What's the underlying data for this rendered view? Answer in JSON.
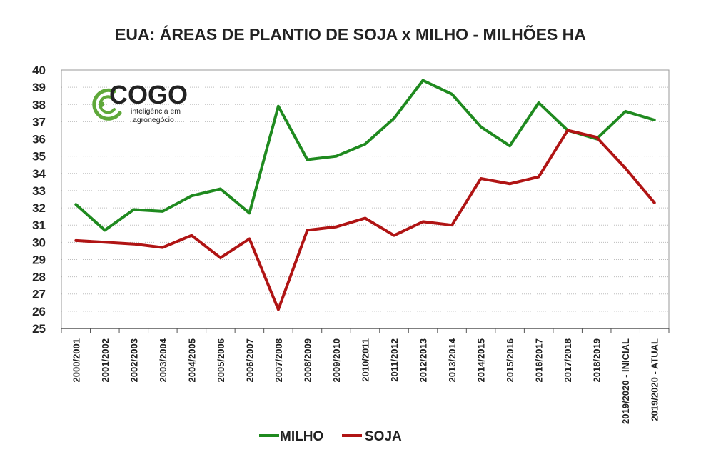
{
  "chart_data": {
    "type": "line",
    "title": "EUA: ÁREAS DE PLANTIO DE SOJA x MILHO - MILHÕES HA",
    "categories": [
      "2000/2001",
      "2001/2002",
      "2002/2003",
      "2003/2004",
      "2004/2005",
      "2005/2006",
      "2006/2007",
      "2007/2008",
      "2008/2009",
      "2009/2010",
      "2010/2011",
      "2011/2012",
      "2012/2013",
      "2013/2014",
      "2014/2015",
      "2015/2016",
      "2016/2017",
      "2017/2018",
      "2018/2019",
      "2019/2020 - INICIAL",
      "2019/2020 - ATUAL"
    ],
    "series": [
      {
        "name": "MILHO",
        "color": "#1f8a1f",
        "values": [
          32.2,
          30.7,
          31.9,
          31.8,
          32.7,
          33.1,
          31.7,
          37.9,
          34.8,
          35.0,
          35.7,
          37.2,
          39.4,
          38.6,
          36.7,
          35.6,
          38.1,
          36.5,
          36.0,
          37.6,
          37.1
        ]
      },
      {
        "name": "SOJA",
        "color": "#b01414",
        "values": [
          30.1,
          30.0,
          29.9,
          29.7,
          30.4,
          29.1,
          30.2,
          26.1,
          30.7,
          30.9,
          31.4,
          30.4,
          31.2,
          31.0,
          33.7,
          33.4,
          33.8,
          36.5,
          36.1,
          34.3,
          32.3
        ]
      }
    ],
    "ylim": [
      25,
      40
    ],
    "yticks": [
      25,
      26,
      27,
      28,
      29,
      30,
      31,
      32,
      33,
      34,
      35,
      36,
      37,
      38,
      39,
      40
    ],
    "grid": true,
    "legend": "bottom-center"
  },
  "logo": {
    "name": "COGO",
    "tagline_line1": "inteligência em",
    "tagline_line2": "agronegócio",
    "color": "#5fa83a"
  }
}
